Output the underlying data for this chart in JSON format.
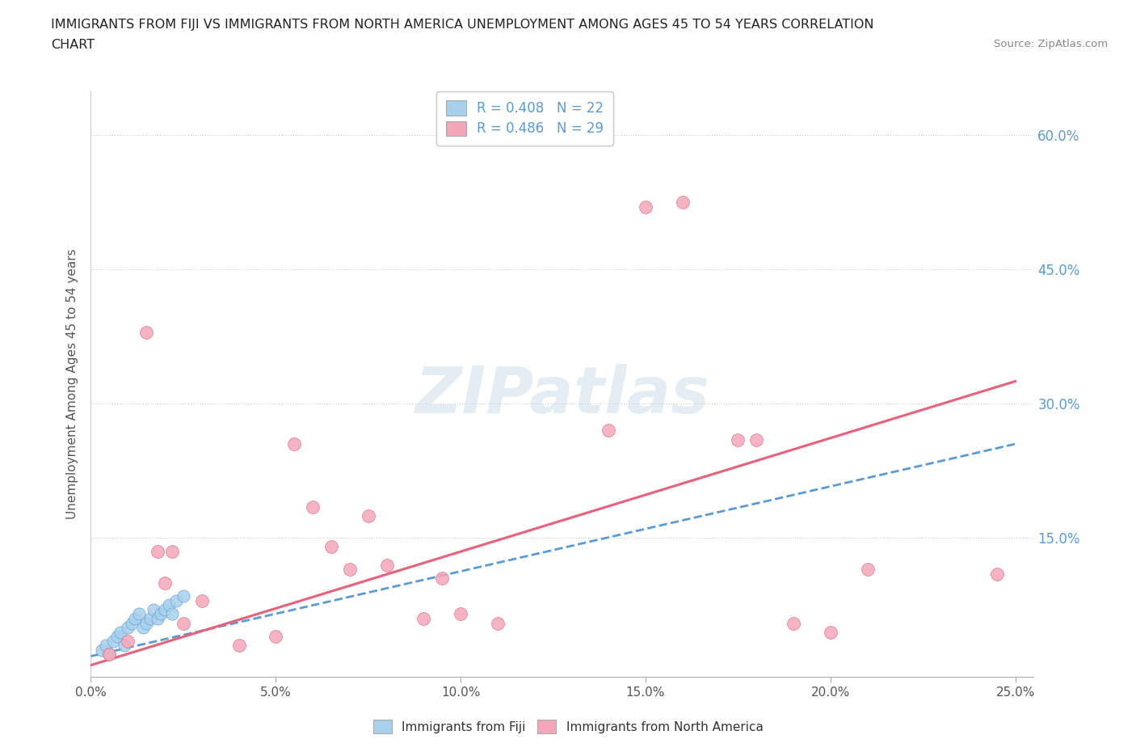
{
  "title_line1": "IMMIGRANTS FROM FIJI VS IMMIGRANTS FROM NORTH AMERICA UNEMPLOYMENT AMONG AGES 45 TO 54 YEARS CORRELATION",
  "title_line2": "CHART",
  "source_text": "Source: ZipAtlas.com",
  "ylabel": "Unemployment Among Ages 45 to 54 years",
  "xlim": [
    0.0,
    0.255
  ],
  "ylim": [
    -0.005,
    0.65
  ],
  "xticks": [
    0.0,
    0.05,
    0.1,
    0.15,
    0.2,
    0.25
  ],
  "ytick_labels": [
    "",
    "15.0%",
    "30.0%",
    "45.0%",
    "60.0%"
  ],
  "ytick_vals": [
    0.0,
    0.15,
    0.3,
    0.45,
    0.6
  ],
  "fiji_R": 0.408,
  "fiji_N": 22,
  "na_R": 0.486,
  "na_N": 29,
  "fiji_color": "#a8d0eb",
  "na_color": "#f4a7b9",
  "fiji_line_color": "#5b9bd5",
  "na_line_color": "#e8607a",
  "watermark": "ZIPatlas",
  "fiji_x": [
    0.003,
    0.004,
    0.005,
    0.006,
    0.007,
    0.008,
    0.009,
    0.01,
    0.011,
    0.012,
    0.013,
    0.014,
    0.015,
    0.016,
    0.017,
    0.018,
    0.019,
    0.02,
    0.021,
    0.022,
    0.023,
    0.025
  ],
  "fiji_y": [
    0.025,
    0.03,
    0.02,
    0.035,
    0.04,
    0.045,
    0.03,
    0.05,
    0.055,
    0.06,
    0.065,
    0.05,
    0.055,
    0.06,
    0.07,
    0.06,
    0.065,
    0.07,
    0.075,
    0.065,
    0.08,
    0.085
  ],
  "na_x": [
    0.005,
    0.01,
    0.015,
    0.018,
    0.02,
    0.022,
    0.025,
    0.03,
    0.04,
    0.05,
    0.055,
    0.06,
    0.065,
    0.07,
    0.075,
    0.08,
    0.09,
    0.095,
    0.1,
    0.11,
    0.14,
    0.15,
    0.16,
    0.175,
    0.18,
    0.19,
    0.2,
    0.21,
    0.245
  ],
  "na_y": [
    0.02,
    0.035,
    0.38,
    0.135,
    0.1,
    0.135,
    0.055,
    0.08,
    0.03,
    0.04,
    0.255,
    0.185,
    0.14,
    0.115,
    0.175,
    0.12,
    0.06,
    0.105,
    0.065,
    0.055,
    0.27,
    0.52,
    0.525,
    0.26,
    0.26,
    0.055,
    0.045,
    0.115,
    0.11
  ],
  "fiji_line_x0": 0.0,
  "fiji_line_x1": 0.25,
  "fiji_line_y0": 0.018,
  "fiji_line_y1": 0.255,
  "na_line_x0": 0.0,
  "na_line_x1": 0.25,
  "na_line_y0": 0.008,
  "na_line_y1": 0.325
}
